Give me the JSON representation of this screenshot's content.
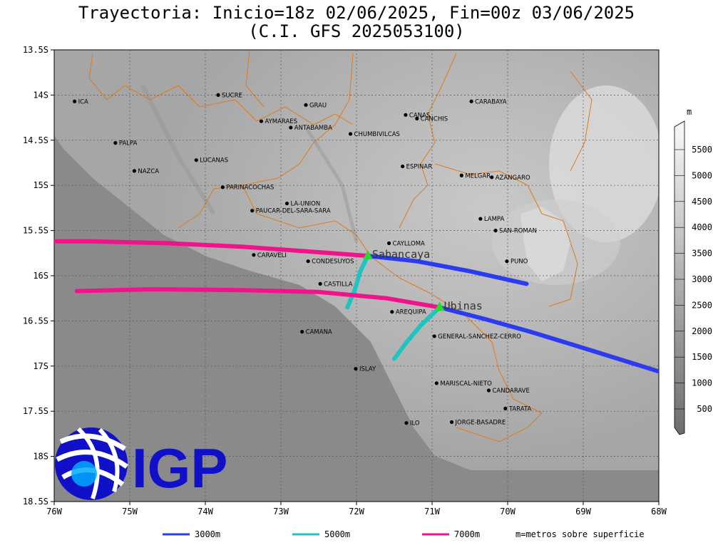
{
  "title": {
    "line1": "Trayectoria: Inicio=18z 02/06/2025, Fin=00z 03/06/2025",
    "line2": "(C.I. GFS 2025053100)"
  },
  "axes": {
    "lat_ticks": [
      "13.5S",
      "14S",
      "14.5S",
      "15S",
      "15.5S",
      "16S",
      "16.5S",
      "17S",
      "17.5S",
      "18S",
      "18.5S"
    ],
    "lon_ticks": [
      "76W",
      "75W",
      "74W",
      "73W",
      "72W",
      "71W",
      "70W",
      "69W",
      "68W"
    ]
  },
  "colorbar": {
    "unit": "m",
    "labels": [
      "500",
      "1000",
      "1500",
      "2000",
      "2500",
      "3000",
      "3500",
      "4000",
      "4500",
      "5000",
      "5500"
    ]
  },
  "legend": {
    "items": [
      {
        "label": "3000m",
        "color": "#2b3cf0"
      },
      {
        "label": "5000m",
        "color": "#1ec4c0"
      },
      {
        "label": "7000m",
        "color": "#f0148c"
      }
    ],
    "note": "m=metros sobre superficie"
  },
  "logo": {
    "text": "IGP"
  },
  "volcanoes": [
    {
      "name": "Sabancaya",
      "lon": -71.85,
      "lat": -15.78
    },
    {
      "name": "Ubinas",
      "lon": -70.9,
      "lat": -16.35
    }
  ],
  "places": [
    {
      "name": "ICA",
      "lon": -75.73,
      "lat": -14.07
    },
    {
      "name": "SUCRE",
      "lon": -73.83,
      "lat": -14.0
    },
    {
      "name": "GRAU",
      "lon": -72.67,
      "lat": -14.11
    },
    {
      "name": "CARABAYA",
      "lon": -70.48,
      "lat": -14.07
    },
    {
      "name": "CANAS",
      "lon": -71.35,
      "lat": -14.22
    },
    {
      "name": "CANCHIS",
      "lon": -71.2,
      "lat": -14.26
    },
    {
      "name": "AYMARAES",
      "lon": -73.26,
      "lat": -14.29
    },
    {
      "name": "ANTABAMBA",
      "lon": -72.87,
      "lat": -14.36
    },
    {
      "name": "CHUMBIVILCAS",
      "lon": -72.08,
      "lat": -14.43
    },
    {
      "name": "PALPA",
      "lon": -75.19,
      "lat": -14.53
    },
    {
      "name": "LUCANAS",
      "lon": -74.12,
      "lat": -14.72
    },
    {
      "name": "ESPINAR",
      "lon": -71.39,
      "lat": -14.79
    },
    {
      "name": "NAZCA",
      "lon": -74.94,
      "lat": -14.84
    },
    {
      "name": "MELGAR",
      "lon": -70.61,
      "lat": -14.89
    },
    {
      "name": "AZANGARO",
      "lon": -70.21,
      "lat": -14.91
    },
    {
      "name": "PARINACOCHAS",
      "lon": -73.77,
      "lat": -15.02
    },
    {
      "name": "LA-UNION",
      "lon": -72.92,
      "lat": -15.2
    },
    {
      "name": "PAUCAR-DEL-SARA-SARA",
      "lon": -73.38,
      "lat": -15.28
    },
    {
      "name": "LAMPA",
      "lon": -70.36,
      "lat": -15.37
    },
    {
      "name": "CAYLLOMA",
      "lon": -71.57,
      "lat": -15.64
    },
    {
      "name": "SAN-ROMAN",
      "lon": -70.16,
      "lat": -15.5
    },
    {
      "name": "CARAVELI",
      "lon": -73.36,
      "lat": -15.77
    },
    {
      "name": "CONDESUYOS",
      "lon": -72.64,
      "lat": -15.84
    },
    {
      "name": "PUNO",
      "lon": -70.01,
      "lat": -15.84
    },
    {
      "name": "CASTILLA",
      "lon": -72.48,
      "lat": -16.09
    },
    {
      "name": "AREQUIPA",
      "lon": -71.53,
      "lat": -16.4
    },
    {
      "name": "CAMANA",
      "lon": -72.72,
      "lat": -16.62
    },
    {
      "name": "GENERAL-SANCHEZ-CERRO",
      "lon": -70.97,
      "lat": -16.67
    },
    {
      "name": "ISLAY",
      "lon": -72.01,
      "lat": -17.03
    },
    {
      "name": "MARISCAL-NIETO",
      "lon": -70.94,
      "lat": -17.19
    },
    {
      "name": "CANDARAVE",
      "lon": -70.25,
      "lat": -17.27
    },
    {
      "name": "TARATA",
      "lon": -70.03,
      "lat": -17.47
    },
    {
      "name": "ILO",
      "lon": -71.34,
      "lat": -17.63
    },
    {
      "name": "JORGE-BASADRE",
      "lon": -70.74,
      "lat": -17.62
    }
  ],
  "trajectories": [
    {
      "height": "7000m",
      "color": "#f0148c",
      "from": "Sabancaya",
      "points": [
        [
          -71.85,
          -15.78
        ],
        [
          -72.5,
          -15.74
        ],
        [
          -73.5,
          -15.68
        ],
        [
          -74.5,
          -15.64
        ],
        [
          -75.5,
          -15.62
        ],
        [
          -76.0,
          -15.62
        ]
      ]
    },
    {
      "height": "3000m",
      "color": "#2b3cf0",
      "from": "Sabancaya",
      "points": [
        [
          -71.85,
          -15.78
        ],
        [
          -71.2,
          -15.84
        ],
        [
          -70.5,
          -15.95
        ],
        [
          -69.75,
          -16.09
        ]
      ]
    },
    {
      "height": "5000m",
      "color": "#1ec4c0",
      "from": "Sabancaya",
      "points": [
        [
          -71.85,
          -15.78
        ],
        [
          -71.95,
          -15.95
        ],
        [
          -72.02,
          -16.15
        ],
        [
          -72.12,
          -16.35
        ]
      ]
    },
    {
      "height": "7000m",
      "color": "#f0148c",
      "from": "Ubinas",
      "points": [
        [
          -70.9,
          -16.35
        ],
        [
          -71.6,
          -16.25
        ],
        [
          -72.5,
          -16.18
        ],
        [
          -73.5,
          -16.16
        ],
        [
          -74.7,
          -16.15
        ],
        [
          -75.7,
          -16.17
        ]
      ]
    },
    {
      "height": "3000m",
      "color": "#2b3cf0",
      "from": "Ubinas",
      "points": [
        [
          -70.9,
          -16.35
        ],
        [
          -70.3,
          -16.48
        ],
        [
          -69.7,
          -16.62
        ],
        [
          -69.0,
          -16.8
        ],
        [
          -68.0,
          -17.06
        ]
      ]
    },
    {
      "height": "5000m",
      "color": "#1ec4c0",
      "from": "Ubinas",
      "points": [
        [
          -70.9,
          -16.35
        ],
        [
          -71.15,
          -16.55
        ],
        [
          -71.35,
          -16.75
        ],
        [
          -71.5,
          -16.92
        ]
      ]
    }
  ]
}
